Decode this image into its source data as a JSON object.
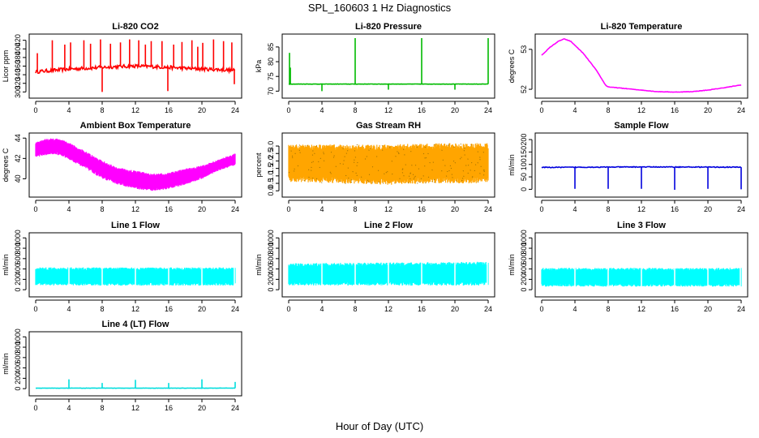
{
  "figure": {
    "title": "SPL_160603  1 Hz Diagnostics",
    "xlabel": "Hour of Day (UTC)"
  },
  "chart_data": [
    {
      "type": "line",
      "title": "Li-820 CO2",
      "ylabel": "Licor ppm",
      "color": "#ff0000",
      "xlim": [
        0,
        24
      ],
      "xticks": [
        0,
        4,
        8,
        12,
        16,
        20,
        24
      ],
      "ylim": [
        295,
        425
      ],
      "yticks": [
        300,
        320,
        340,
        360,
        380,
        400,
        420
      ],
      "baseline": [
        [
          0,
          347
        ],
        [
          2,
          350
        ],
        [
          4,
          353
        ],
        [
          6,
          355
        ],
        [
          8,
          357
        ],
        [
          10,
          359
        ],
        [
          12,
          360
        ],
        [
          14,
          359
        ],
        [
          16,
          357
        ],
        [
          18,
          355
        ],
        [
          20,
          353
        ],
        [
          22,
          352
        ],
        [
          24,
          350
        ]
      ],
      "noise": 4,
      "spikes": [
        [
          0.2,
          390
        ],
        [
          2,
          420
        ],
        [
          3.5,
          410
        ],
        [
          4.2,
          415
        ],
        [
          5.8,
          420
        ],
        [
          6.6,
          412
        ],
        [
          7.8,
          422
        ],
        [
          8,
          300
        ],
        [
          9,
          412
        ],
        [
          10.2,
          415
        ],
        [
          11.3,
          422
        ],
        [
          12.4,
          420
        ],
        [
          13.2,
          410
        ],
        [
          13.9,
          418
        ],
        [
          15.2,
          418
        ],
        [
          15.9,
          302
        ],
        [
          16.6,
          410
        ],
        [
          17.6,
          416
        ],
        [
          18.8,
          420
        ],
        [
          19.5,
          405
        ],
        [
          20.1,
          414
        ],
        [
          21.4,
          422
        ],
        [
          22.6,
          418
        ],
        [
          23.6,
          415
        ],
        [
          23.9,
          318
        ]
      ]
    },
    {
      "type": "line",
      "title": "Li-820 Pressure",
      "ylabel": "kPa",
      "color": "#00bb00",
      "xlim": [
        0,
        24
      ],
      "xticks": [
        0,
        4,
        8,
        12,
        16,
        20,
        24
      ],
      "ylim": [
        69,
        88
      ],
      "yticks": [
        70,
        75,
        80,
        85
      ],
      "baseline": [
        [
          0,
          72.4
        ],
        [
          24,
          72.4
        ]
      ],
      "noise": 0.05,
      "spikes": [
        [
          0.1,
          83
        ],
        [
          0.2,
          78
        ],
        [
          4,
          70
        ],
        [
          8,
          88
        ],
        [
          12,
          70.5
        ],
        [
          16,
          88
        ],
        [
          20,
          70.5
        ],
        [
          24,
          88
        ]
      ]
    },
    {
      "type": "line",
      "title": "Li-820 Temperature",
      "ylabel": "degrees C",
      "color": "#ff00ff",
      "xlim": [
        0,
        24
      ],
      "xticks": [
        0,
        4,
        8,
        12,
        16,
        20,
        24
      ],
      "ylim": [
        51.88,
        53.28
      ],
      "yticks": [
        52.0,
        53.0
      ],
      "baseline": [
        [
          0,
          52.85
        ],
        [
          1,
          53.05
        ],
        [
          2,
          53.2
        ],
        [
          2.7,
          53.26
        ],
        [
          3.5,
          53.2
        ],
        [
          5,
          52.9
        ],
        [
          6.5,
          52.5
        ],
        [
          7.7,
          52.1
        ],
        [
          8,
          52.06
        ],
        [
          10,
          52.02
        ],
        [
          12,
          51.98
        ],
        [
          14,
          51.94
        ],
        [
          16,
          51.93
        ],
        [
          18,
          51.94
        ],
        [
          20,
          51.98
        ],
        [
          22,
          52.04
        ],
        [
          24,
          52.11
        ]
      ],
      "noise": 0.005,
      "spikes": []
    },
    {
      "type": "band",
      "title": "Ambient Box Temperature",
      "ylabel": "degrees C",
      "color": "#ff00ff",
      "xlim": [
        0,
        24
      ],
      "xticks": [
        0,
        4,
        8,
        12,
        16,
        20,
        24
      ],
      "ylim": [
        38.6,
        44.1
      ],
      "yticks": [
        40,
        42,
        44
      ],
      "band": [
        [
          0,
          42.1,
          43.6
        ],
        [
          1,
          42.3,
          43.9
        ],
        [
          2.5,
          42.4,
          44.0
        ],
        [
          4,
          41.9,
          43.6
        ],
        [
          6,
          41.0,
          42.7
        ],
        [
          8,
          40.0,
          41.8
        ],
        [
          10,
          39.4,
          41.1
        ],
        [
          12,
          39.0,
          40.8
        ],
        [
          14,
          38.8,
          40.5
        ],
        [
          16,
          39.0,
          40.6
        ],
        [
          18,
          39.4,
          41.0
        ],
        [
          20,
          40.0,
          41.3
        ],
        [
          22,
          40.8,
          41.9
        ],
        [
          24,
          41.3,
          42.5
        ]
      ]
    },
    {
      "type": "band",
      "title": "Gas Stream RH",
      "ylabel": "percent",
      "color": "#ffa500",
      "color2": "#a07000",
      "xlim": [
        0,
        24
      ],
      "xticks": [
        0,
        4,
        8,
        12,
        16,
        20,
        24
      ],
      "ylim": [
        -0.15,
        3.6
      ],
      "yticks": [
        0.0,
        0.5,
        1.0,
        1.5,
        2.0,
        2.5,
        3.0
      ],
      "band": [
        [
          0,
          0.6,
          3.1
        ],
        [
          6,
          0.5,
          3.1
        ],
        [
          12,
          0.4,
          3.1
        ],
        [
          18,
          0.5,
          3.2
        ],
        [
          24,
          0.5,
          3.2
        ]
      ]
    },
    {
      "type": "line",
      "title": "Sample Flow",
      "ylabel": "ml/min",
      "color": "#0000dd",
      "xlim": [
        0,
        24
      ],
      "xticks": [
        0,
        4,
        8,
        12,
        16,
        20,
        24
      ],
      "ylim": [
        -15,
        210
      ],
      "yticks": [
        0,
        50,
        100,
        150,
        200
      ],
      "baseline": [
        [
          0,
          88
        ],
        [
          12,
          90
        ],
        [
          24,
          89
        ]
      ],
      "noise": 1.5,
      "spikes": [
        [
          4,
          2
        ],
        [
          8,
          2
        ],
        [
          12,
          2
        ],
        [
          16,
          -2
        ],
        [
          20,
          2
        ],
        [
          24,
          0
        ]
      ]
    },
    {
      "type": "band",
      "title": "Line 1 Flow",
      "ylabel": "ml/min",
      "color": "#00ffff",
      "xlim": [
        0,
        24
      ],
      "xticks": [
        0,
        4,
        8,
        12,
        16,
        20,
        24
      ],
      "ylim": [
        -60,
        1020
      ],
      "yticks": [
        0,
        200,
        400,
        600,
        800,
        1000
      ],
      "band": [
        [
          0,
          80,
          430
        ],
        [
          24,
          80,
          430
        ]
      ],
      "gaps": [
        4,
        8,
        12,
        16,
        20,
        23.9
      ]
    },
    {
      "type": "band",
      "title": "Line 2 Flow",
      "ylabel": "ml/min",
      "color": "#00ffff",
      "xlim": [
        0,
        24
      ],
      "xticks": [
        0,
        4,
        8,
        12,
        16,
        20,
        24
      ],
      "ylim": [
        -60,
        1020
      ],
      "yticks": [
        0,
        200,
        400,
        600,
        800,
        1000
      ],
      "band": [
        [
          0,
          80,
          510
        ],
        [
          8,
          80,
          520
        ],
        [
          16,
          80,
          530
        ],
        [
          24,
          80,
          540
        ]
      ],
      "gaps": [
        4,
        8,
        12,
        16,
        20,
        23.9
      ]
    },
    {
      "type": "band",
      "title": "Line 3 Flow",
      "ylabel": "ml/min",
      "color": "#00ffff",
      "xlim": [
        0,
        24
      ],
      "xticks": [
        0,
        4,
        8,
        12,
        16,
        20,
        24
      ],
      "ylim": [
        -60,
        1020
      ],
      "yticks": [
        0,
        200,
        400,
        600,
        800,
        1000
      ],
      "band": [
        [
          0,
          60,
          420
        ],
        [
          24,
          60,
          420
        ]
      ],
      "gaps": [
        4,
        8,
        12,
        16,
        20,
        23.9
      ]
    },
    {
      "type": "line",
      "title": "Line 4 (LT) Flow",
      "ylabel": "ml/min",
      "color": "#00dddd",
      "xlim": [
        0,
        24
      ],
      "xticks": [
        0,
        4,
        8,
        12,
        16,
        20,
        24
      ],
      "ylim": [
        -60,
        1020
      ],
      "yticks": [
        0,
        200,
        400,
        600,
        800,
        1000
      ],
      "baseline": [
        [
          0,
          10
        ],
        [
          24,
          10
        ]
      ],
      "noise": 3,
      "spikes": [
        [
          4,
          180
        ],
        [
          8,
          110
        ],
        [
          12,
          170
        ],
        [
          16,
          110
        ],
        [
          20,
          180
        ],
        [
          24,
          130
        ]
      ]
    }
  ]
}
